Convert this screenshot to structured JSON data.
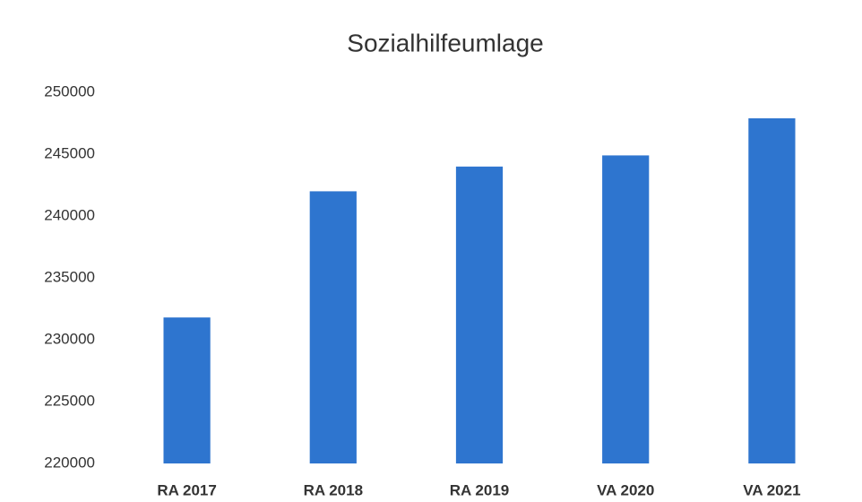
{
  "chart_data": {
    "type": "bar",
    "title": "Sozialhilfeumlage",
    "categories": [
      "RA 2017",
      "RA 2018",
      "RA 2019",
      "VA 2020",
      "VA 2021"
    ],
    "values": [
      231800,
      242000,
      244000,
      244900,
      247900
    ],
    "color": "#2e75cf",
    "ylim": [
      220000,
      250000
    ],
    "yticks": [
      220000,
      225000,
      230000,
      235000,
      240000,
      245000,
      250000
    ],
    "grid": false
  }
}
